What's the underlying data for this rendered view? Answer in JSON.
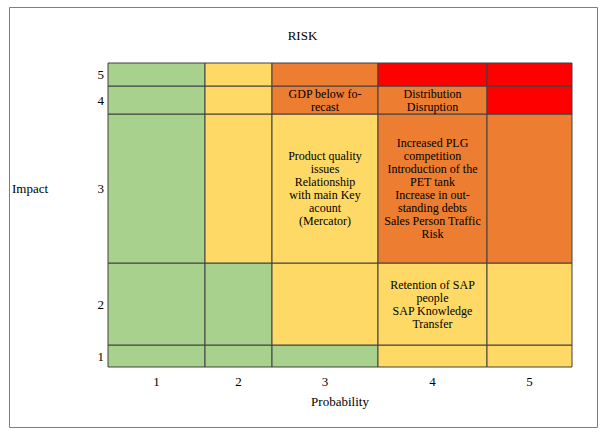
{
  "chart_data": {
    "type": "heatmap",
    "title": "RISK",
    "x_label": "Probability",
    "y_label": "Impact",
    "x": [
      1,
      2,
      3,
      4,
      5
    ],
    "y": [
      1,
      2,
      3,
      4,
      5
    ],
    "colors": [
      [
        "#a9d18e",
        "#a9d18e",
        "#a9d18e",
        "#ffd966",
        "#ffd966"
      ],
      [
        "#a9d18e",
        "#a9d18e",
        "#ffd966",
        "#ffd966",
        "#ffd966"
      ],
      [
        "#a9d18e",
        "#ffd966",
        "#ffd966",
        "#ed7d31",
        "#ed7d31"
      ],
      [
        "#a9d18e",
        "#ffd966",
        "#ed7d31",
        "#ed7d31",
        "#ff0000"
      ],
      [
        "#a9d18e",
        "#ffd966",
        "#ed7d31",
        "#ff0000",
        "#ff0000"
      ]
    ],
    "annotations": [
      {
        "x": 3,
        "y": 4,
        "text": "GDP below fo-\nrecast"
      },
      {
        "x": 4,
        "y": 4,
        "text": "Distribution\nDisruption"
      },
      {
        "x": 3,
        "y": 3,
        "text": "Product quality\nissues\nRelationship\nwith main Key\nacount\n(Mercator)"
      },
      {
        "x": 4,
        "y": 3,
        "text": "Increased PLG\ncompetition\nIntroduction of the\nPET tank\nIncrease in out-\nstanding debts\nSales Person Traffic\nRisk"
      },
      {
        "x": 4,
        "y": 2,
        "text": "Retention of SAP\npeople\nSAP Knowledge\nTransfer"
      }
    ]
  }
}
